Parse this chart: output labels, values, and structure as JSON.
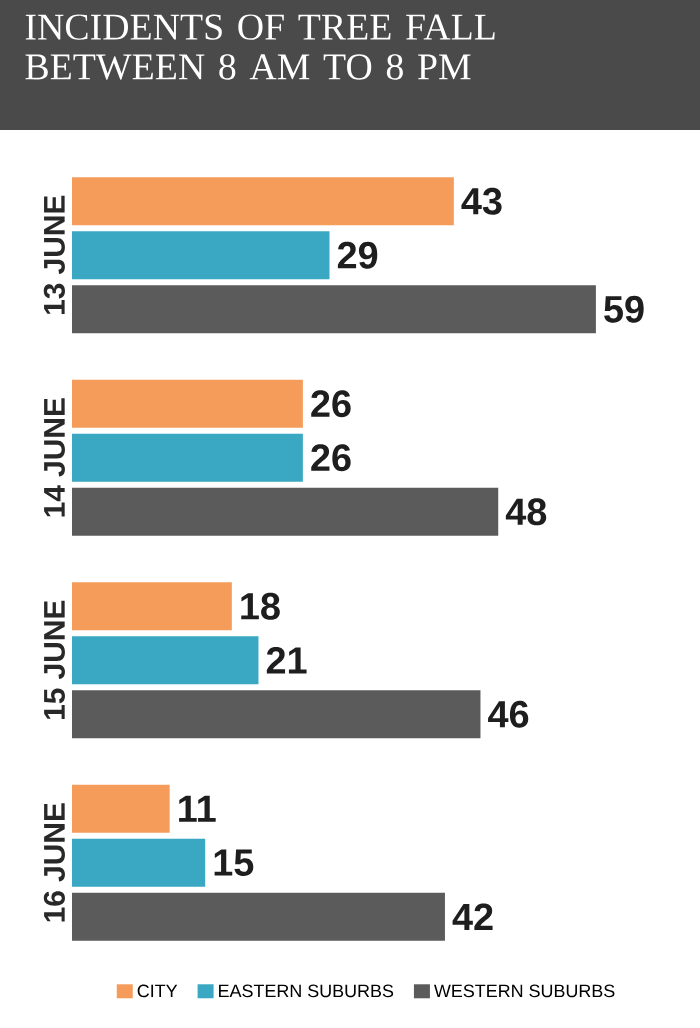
{
  "chart_data": {
    "type": "bar",
    "orientation": "horizontal",
    "title": "INCIDENTS OF TREE FALL BETWEEN 8 AM TO 8 PM",
    "categories": [
      "13 JUNE",
      "14 JUNE",
      "15 JUNE",
      "16 JUNE"
    ],
    "series": [
      {
        "name": "CITY",
        "color": "#f59c5b",
        "values": [
          43,
          26,
          18,
          11
        ]
      },
      {
        "name": "EASTERN SUBURBS",
        "color": "#3aa8c3",
        "values": [
          29,
          26,
          21,
          15
        ]
      },
      {
        "name": "WESTERN SUBURBS",
        "color": "#5b5b5b",
        "values": [
          59,
          48,
          46,
          42
        ]
      }
    ],
    "data_labels": true,
    "legend": "bottom"
  }
}
